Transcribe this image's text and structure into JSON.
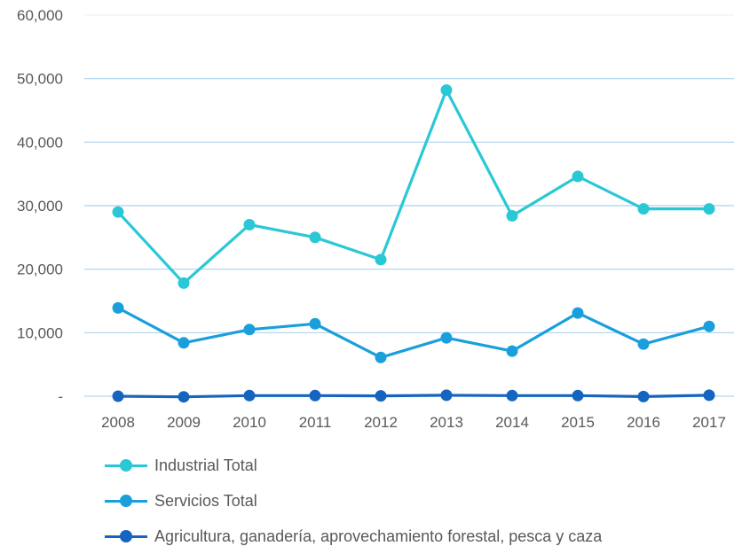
{
  "chart_data": {
    "type": "line",
    "categories": [
      "2008",
      "2009",
      "2010",
      "2011",
      "2012",
      "2013",
      "2014",
      "2015",
      "2016",
      "2017"
    ],
    "ylim": [
      0,
      60000
    ],
    "yticks": [
      0,
      10000,
      20000,
      30000,
      40000,
      50000,
      60000
    ],
    "ytick_labels": [
      "-",
      "10,000",
      "20,000",
      "30,000",
      "40,000",
      "50,000",
      "60,000"
    ],
    "grid": true,
    "legend_position": "bottom",
    "series": [
      {
        "name": "Industrial Total",
        "color": "#2ac8d6",
        "values": [
          29000,
          17800,
          27000,
          25000,
          21500,
          48200,
          28400,
          34600,
          29500,
          29500
        ]
      },
      {
        "name": "Servicios Total",
        "color": "#1a9fdc",
        "values": [
          13900,
          8400,
          10500,
          11400,
          6100,
          9200,
          7100,
          13100,
          8200,
          11000
        ]
      },
      {
        "name": "Agricultura, ganadería, aprovechamiento forestal, pesca y caza",
        "color": "#1565c0",
        "values": [
          0,
          -100,
          100,
          100,
          50,
          150,
          100,
          100,
          -50,
          150
        ]
      }
    ]
  }
}
